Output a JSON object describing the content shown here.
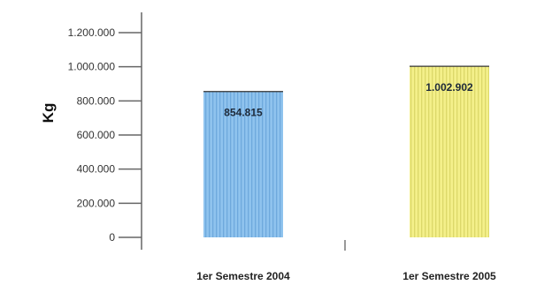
{
  "chart_data": {
    "type": "bar",
    "categories": [
      "1er Semestre 2004",
      "1er Semestre 2005"
    ],
    "values": [
      854815,
      1002902
    ],
    "data_labels": [
      "854.815",
      "1.002.902"
    ],
    "ylabel": "Kg",
    "ylim": [
      0,
      1200000
    ],
    "yticks": [
      0,
      200000,
      400000,
      600000,
      800000,
      1000000,
      1200000
    ],
    "ytick_labels": [
      "0",
      "200.000",
      "400.000",
      "600.000",
      "800.000",
      "1.000.000",
      "1.200.000"
    ],
    "grid": false,
    "legend": "none",
    "colors": [
      "#8fc3ee",
      "#f4f08a"
    ]
  }
}
